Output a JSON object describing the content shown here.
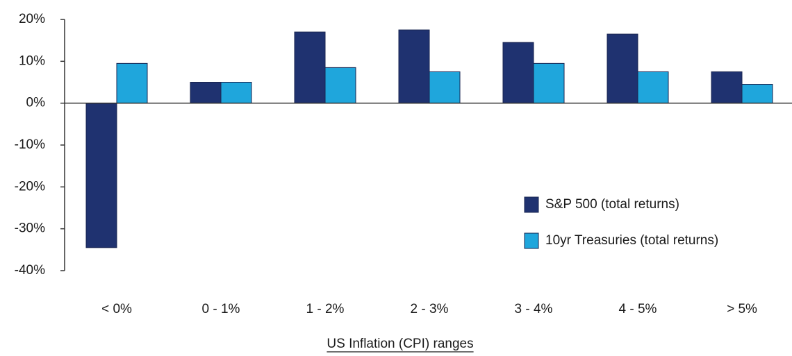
{
  "chart_data": {
    "type": "bar",
    "x_label": "US Inflation (CPI) ranges",
    "categories": [
      "< 0%",
      "0 - 1%",
      "1 - 2%",
      "2 - 3%",
      "3 - 4%",
      "4 - 5%",
      "> 5%"
    ],
    "series": [
      {
        "name": "S&P 500 (total returns)",
        "color": "#1f3270",
        "values": [
          -34.5,
          5,
          17,
          17.5,
          14.5,
          16.5,
          7.5
        ]
      },
      {
        "name": "10yr Treasuries (total returns)",
        "color": "#1fa6dc",
        "values": [
          9.5,
          5,
          8.5,
          7.5,
          9.5,
          7.5,
          4.5
        ]
      }
    ],
    "ylim": [
      -40,
      20
    ],
    "yticks": [
      {
        "value": -40,
        "label": "-40%"
      },
      {
        "value": -30,
        "label": "-30%"
      },
      {
        "value": -20,
        "label": "-20%"
      },
      {
        "value": -10,
        "label": "-10%"
      },
      {
        "value": 0,
        "label": "0%"
      },
      {
        "value": 10,
        "label": "10%"
      },
      {
        "value": 20,
        "label": "20%"
      }
    ],
    "grid": false,
    "legend": "right"
  }
}
